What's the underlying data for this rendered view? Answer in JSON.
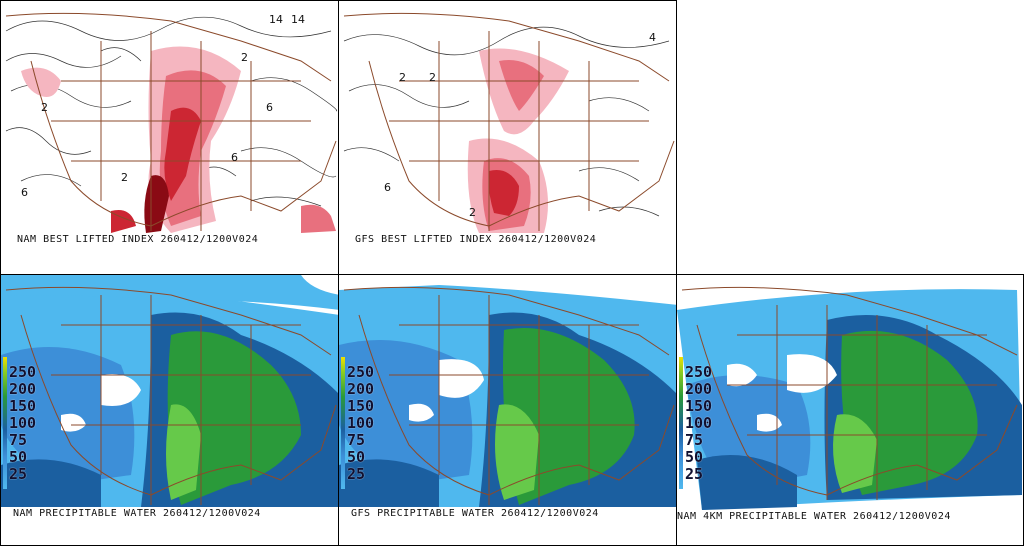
{
  "panels": {
    "nam_li": {
      "caption": "NAM BEST LIFTED INDEX 260412/1200V024"
    },
    "gfs_li": {
      "caption": "GFS BEST LIFTED INDEX 260412/1200V024"
    },
    "nam_pw": {
      "caption": "NAM PRECIPITABLE WATER 260412/1200V024"
    },
    "gfs_pw": {
      "caption": "GFS PRECIPITABLE WATER 260412/1200V024"
    },
    "nam4km_pw": {
      "caption": "NAM 4KM PRECIPITABLE WATER 260412/1200V024"
    }
  },
  "pw_legend": {
    "labels": [
      "250",
      "200",
      "150",
      "100",
      "75",
      "50",
      "25"
    ]
  },
  "li_contour_labels": [
    "14",
    "14",
    "2",
    "6",
    "2",
    "-2",
    "6",
    "6",
    "2",
    "2",
    "-2"
  ],
  "colors": {
    "map_lines": "#8b4a2b",
    "li_light": "#f5b6c0",
    "li_mid": "#e8707e",
    "li_dark": "#cc2633",
    "li_darkest": "#8a0a14",
    "pw_light_blue": "#4fb8ee",
    "pw_mid_blue": "#3d8fd8",
    "pw_dark_blue": "#1b5fa0",
    "pw_green": "#2a9a3a",
    "pw_light_green": "#66c94a"
  }
}
